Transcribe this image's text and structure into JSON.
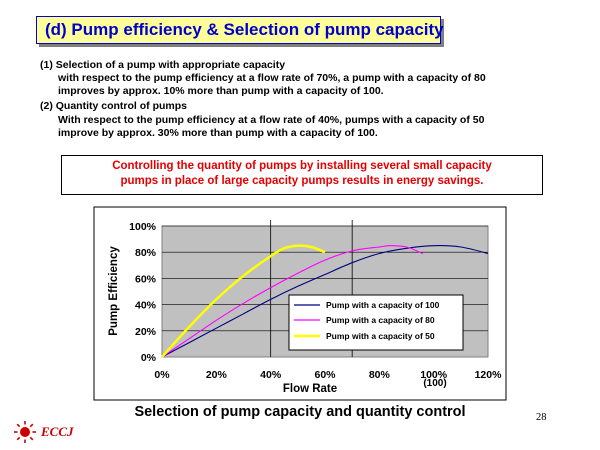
{
  "header": {
    "title": "(d) Pump efficiency & Selection of pump capacity"
  },
  "body_text": {
    "item1_heading": "(1) Selection of a pump with appropriate capacity",
    "item1_line1": "with respect to the pump efficiency at a flow rate of 70%, a pump with a capacity of 80",
    "item1_line2": "improves by approx. 10% more than pump with a capacity of 100.",
    "item2_heading": "(2) Quantity control of pumps",
    "item2_line1": "With respect to the pump efficiency at a flow rate of 40%,  pumps with a capacity of 50",
    "item2_line2": "improve by approx. 30% more than pump with a capacity of 100."
  },
  "callout": {
    "line1": "Controlling the quantity of pumps by installing several small capacity",
    "line2": "pumps in place of large capacity pumps results in energy savings."
  },
  "chart_data": {
    "type": "line",
    "xlabel": "Flow Rate",
    "ylabel": "Pump Efficiency",
    "xlim": [
      0,
      120
    ],
    "ylim": [
      0,
      100
    ],
    "x_ticks": [
      "0%",
      "20%",
      "40%",
      "60%",
      "80%",
      "100%",
      "120%"
    ],
    "y_ticks": [
      "0%",
      "20%",
      "40%",
      "60%",
      "80%",
      "100%"
    ],
    "x_sublabel": "(100)",
    "vertical_reference_lines": [
      40,
      70
    ],
    "grid": "horizontal",
    "plot_background": "#c0c0c0",
    "legend_position": "bottom-right",
    "series": [
      {
        "name": "Pump with a capacity of 100",
        "color": "#000080",
        "x": [
          0,
          10,
          20,
          30,
          40,
          50,
          60,
          70,
          80,
          90,
          100,
          110,
          120
        ],
        "y": [
          0,
          11,
          22,
          33,
          44,
          54,
          63,
          72,
          79,
          83,
          85,
          84,
          79
        ]
      },
      {
        "name": "Pump with a capacity of 80",
        "color": "#ff00ff",
        "x": [
          0,
          10,
          20,
          30,
          40,
          50,
          60,
          70,
          80,
          84,
          90,
          96
        ],
        "y": [
          0,
          14,
          28,
          41,
          53,
          64,
          74,
          81,
          84,
          85,
          84,
          79
        ]
      },
      {
        "name": "Pump with a capacity of 50",
        "color": "#ffff00",
        "x": [
          0,
          10,
          20,
          30,
          40,
          45,
          50,
          55,
          60
        ],
        "y": [
          0,
          23,
          44,
          62,
          77,
          83,
          85,
          84,
          80
        ]
      }
    ],
    "caption": "Selection of pump capacity and quantity control"
  },
  "footer": {
    "page_number": "28",
    "logo_text": "ECCJ"
  }
}
